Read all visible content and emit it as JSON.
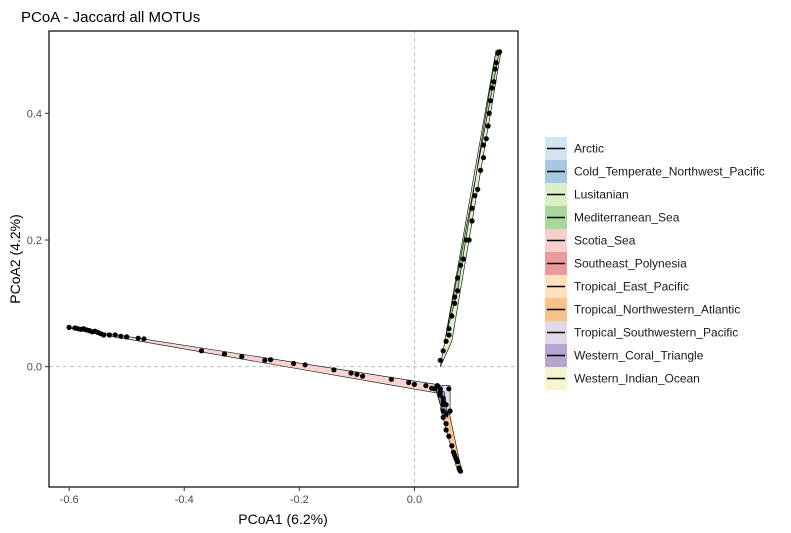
{
  "chart_data": {
    "type": "scatter",
    "title": "PCoA - Jaccard all MOTUs",
    "xlabel": "PCoA1 (6.2%)",
    "ylabel": "PCoA2 (4.2%)",
    "xlim": [
      -0.635,
      0.18
    ],
    "ylim": [
      -0.19,
      0.53
    ],
    "x_ticks": [
      -0.6,
      -0.4,
      -0.2,
      0.0
    ],
    "x_tick_labels": [
      "-0.6",
      "-0.4",
      "-0.2",
      "0.0"
    ],
    "y_ticks": [
      0.0,
      0.2,
      0.4
    ],
    "y_tick_labels": [
      "0.0",
      "0.2",
      "0.4"
    ],
    "grid": false,
    "reference_lines": {
      "x": 0,
      "y": 0,
      "style": "dashed"
    },
    "legend_position": "right",
    "series": [
      {
        "name": "Arctic",
        "color": "#d1e5f0",
        "points": [
          [
            0.04,
            -0.03
          ]
        ]
      },
      {
        "name": "Cold_Temperate_Northwest_Pacific",
        "color": "#a6c8e0",
        "points": [
          [
            0.045,
            -0.035
          ]
        ]
      },
      {
        "name": "Lusitanian",
        "color": "#d9f0c6",
        "points": [
          [
            0.045,
            0.01
          ],
          [
            0.05,
            0.025
          ],
          [
            0.055,
            0.04
          ],
          [
            0.06,
            0.06
          ],
          [
            0.07,
            0.1
          ],
          [
            0.075,
            0.12
          ],
          [
            0.085,
            0.17
          ],
          [
            0.095,
            0.2
          ],
          [
            0.1,
            0.23
          ],
          [
            0.11,
            0.28
          ],
          [
            0.12,
            0.33
          ],
          [
            0.125,
            0.36
          ],
          [
            0.13,
            0.4
          ],
          [
            0.135,
            0.44
          ],
          [
            0.14,
            0.47
          ],
          [
            0.145,
            0.495
          ]
        ],
        "hull": [
          [
            0.045,
            0.0
          ],
          [
            0.065,
            0.04
          ],
          [
            0.15,
            0.495
          ],
          [
            0.14,
            0.49
          ]
        ]
      },
      {
        "name": "Mediterranean_Sea",
        "color": "#a8d69b",
        "points": [
          [
            0.06,
            0.05
          ],
          [
            0.065,
            0.08
          ],
          [
            0.07,
            0.11
          ],
          [
            0.075,
            0.14
          ],
          [
            0.08,
            0.16
          ],
          [
            0.09,
            0.2
          ],
          [
            0.1,
            0.25
          ],
          [
            0.105,
            0.27
          ],
          [
            0.115,
            0.31
          ],
          [
            0.12,
            0.35
          ],
          [
            0.128,
            0.38
          ],
          [
            0.132,
            0.42
          ],
          [
            0.138,
            0.45
          ],
          [
            0.142,
            0.48
          ],
          [
            0.148,
            0.497
          ]
        ],
        "hull": [
          [
            0.055,
            0.05
          ],
          [
            0.148,
            0.5
          ],
          [
            0.142,
            0.5
          ],
          [
            0.075,
            0.12
          ]
        ]
      },
      {
        "name": "Scotia_Sea",
        "color": "#f6cfcc",
        "points": [
          [
            -0.6,
            0.062
          ],
          [
            -0.59,
            0.061
          ],
          [
            -0.585,
            0.06
          ],
          [
            -0.58,
            0.059
          ],
          [
            -0.575,
            0.06
          ],
          [
            -0.57,
            0.058
          ],
          [
            -0.565,
            0.057
          ],
          [
            -0.56,
            0.055
          ],
          [
            -0.555,
            0.056
          ],
          [
            -0.55,
            0.054
          ],
          [
            -0.545,
            0.052
          ],
          [
            -0.54,
            0.05
          ],
          [
            -0.53,
            0.05
          ],
          [
            -0.52,
            0.05
          ],
          [
            -0.51,
            0.048
          ],
          [
            -0.5,
            0.047
          ],
          [
            -0.48,
            0.045
          ],
          [
            -0.47,
            0.044
          ],
          [
            -0.37,
            0.025
          ],
          [
            -0.33,
            0.02
          ],
          [
            -0.3,
            0.016
          ],
          [
            -0.26,
            0.01
          ],
          [
            -0.25,
            0.011
          ],
          [
            -0.21,
            0.005
          ],
          [
            -0.19,
            0.003
          ],
          [
            -0.14,
            -0.005
          ],
          [
            -0.11,
            -0.01
          ],
          [
            -0.1,
            -0.012
          ],
          [
            -0.09,
            -0.015
          ],
          [
            -0.04,
            -0.02
          ],
          [
            -0.01,
            -0.025
          ],
          [
            0.0,
            -0.028
          ],
          [
            0.02,
            -0.03
          ],
          [
            0.03,
            -0.034
          ]
        ],
        "hull": [
          [
            -0.6,
            0.062
          ],
          [
            0.038,
            -0.028
          ],
          [
            0.042,
            -0.042
          ],
          [
            -0.59,
            0.058
          ]
        ]
      },
      {
        "name": "Southeast_Polynesia",
        "color": "#eb9a9a",
        "points": [
          [
            0.035,
            -0.035
          ]
        ]
      },
      {
        "name": "Tropical_East_Pacific",
        "color": "#fde0bd",
        "points": [
          [
            0.05,
            -0.08
          ],
          [
            0.055,
            -0.1
          ]
        ]
      },
      {
        "name": "Tropical_Northwestern_Atlantic",
        "color": "#f9c08a",
        "points": [
          [
            0.05,
            -0.07
          ],
          [
            0.055,
            -0.09
          ],
          [
            0.06,
            -0.11
          ],
          [
            0.065,
            -0.125
          ],
          [
            0.068,
            -0.135
          ],
          [
            0.07,
            -0.14
          ],
          [
            0.072,
            -0.145
          ],
          [
            0.075,
            -0.15
          ],
          [
            0.078,
            -0.16
          ],
          [
            0.08,
            -0.165
          ]
        ],
        "hull": [
          [
            0.045,
            -0.065
          ],
          [
            0.06,
            -0.07
          ],
          [
            0.082,
            -0.165
          ],
          [
            0.075,
            -0.165
          ]
        ]
      },
      {
        "name": "Tropical_Southwestern_Pacific",
        "color": "#e0d8ea",
        "points": [
          [
            0.04,
            -0.03
          ],
          [
            0.045,
            -0.04
          ],
          [
            0.05,
            -0.055
          ],
          [
            0.055,
            -0.06
          ],
          [
            0.06,
            -0.035
          ],
          [
            0.062,
            -0.07
          ]
        ],
        "hull": [
          [
            0.035,
            -0.03
          ],
          [
            0.062,
            -0.03
          ],
          [
            0.062,
            -0.075
          ],
          [
            0.045,
            -0.06
          ]
        ]
      },
      {
        "name": "Western_Coral_Triangle",
        "color": "#b4a6cf",
        "points": [
          [
            0.045,
            -0.045
          ],
          [
            0.05,
            -0.06
          ],
          [
            0.055,
            -0.075
          ]
        ],
        "hull": [
          [
            0.038,
            -0.035
          ],
          [
            0.052,
            -0.04
          ],
          [
            0.058,
            -0.08
          ],
          [
            0.048,
            -0.07
          ]
        ]
      },
      {
        "name": "Western_Indian_Ocean",
        "color": "#f5f6cf",
        "points": [
          [
            0.05,
            -0.05
          ]
        ]
      }
    ]
  }
}
